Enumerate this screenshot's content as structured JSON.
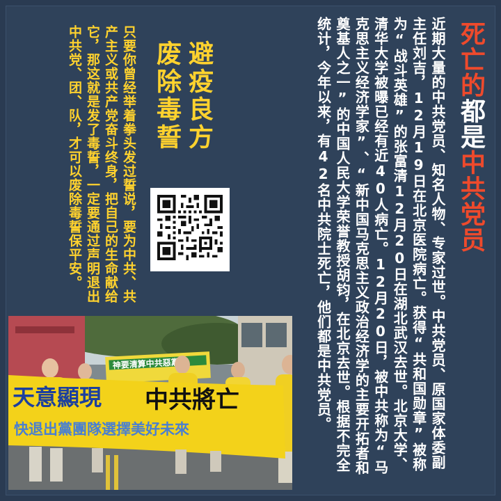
{
  "headline": {
    "part1": "死亡的",
    "part2": "都是",
    "part3": "中共党员"
  },
  "article": {
    "text": "近期大量的中共党员、知名人物、专家过世。中共党员、原国家体委副主任刘吉，12月19日在北京医院病亡。获得“共和国勋章”被称为“战斗英雄”的张富清12月20日在湖北武汉去世。北京大学、清华大学被曝已经有近40人病亡。12月20日，被中共称为“马克思主义经济学家”、“新中国马克思主义政治经济学的主要开拓者和奠基人之一”的中国人民大学荣誉教授胡钧，在北京去世。根据不完全统计，今年以来，有42名中共院士死亡，他们都是中共党员。"
  },
  "motto": {
    "text": "避疫良方废除毒誓"
  },
  "oath": {
    "text": "只要你曾经举着拳头发过誓说，要为中共、共产主义或共产党奋斗终身，把自己的生命献给它，那这就是发了毒誓，一定要通过声明退出中共党、团、队，才可以废除毒誓保平安。"
  },
  "photo": {
    "banner_line1_left": "天意顯現",
    "banner_line1_right": "中共將亡",
    "banner_line2": "快退出黨團隊選擇美好未來",
    "back_banner": "神要清算中共惡黨"
  },
  "colors": {
    "background": "#2f425a",
    "headline_red": "#ee4a2c",
    "motto_yellow": "#ffd22e",
    "banner_yellow": "#f3d21a",
    "banner_blue": "#1c3f9e"
  }
}
